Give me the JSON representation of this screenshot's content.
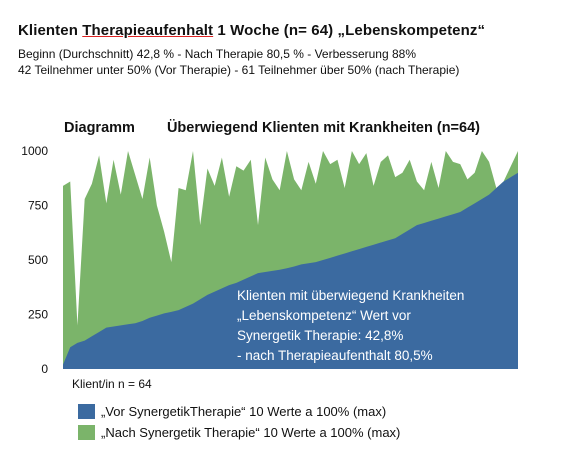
{
  "header": {
    "title_part1": "Klienten ",
    "title_part2": "Therapieaufenhalt",
    "title_part3": " 1 Woche (n= 64) „Lebenskompetenz“",
    "line1": "Beginn (Durchschnitt) 42,8 % - Nach Therapie 80,5 % - Verbesserung 88%",
    "line2": "42 Teilnehmer unter 50% (Vor Therapie) - 61 Teilnehmer über 50% (nach Therapie)"
  },
  "chart_headline": {
    "left": "Diagramm",
    "right": "Überwiegend Klienten mit Krankheiten (n=64)"
  },
  "annotation": {
    "line1": "Klienten mit überwiegend Krankheiten",
    "line2": "„Lebenskompetenz“  Wert vor",
    "line3": "Synergetik Therapie: 42,8%",
    "line4": "- nach Therapieaufenthalt 80,5%"
  },
  "colors": {
    "before": "#3b6aa0",
    "after": "#7bb46a"
  },
  "chart_data": {
    "type": "area",
    "title": "Überwiegend Klienten mit Krankheiten (n=64)",
    "xlabel": "Klient/in n = 64",
    "ylabel": "",
    "ylim": [
      0,
      1000
    ],
    "yticks": [
      0,
      250,
      500,
      750,
      1000
    ],
    "grid": false,
    "legend_position": "bottom",
    "x": [
      1,
      2,
      3,
      4,
      5,
      6,
      7,
      8,
      9,
      10,
      11,
      12,
      13,
      14,
      15,
      16,
      17,
      18,
      19,
      20,
      21,
      22,
      23,
      24,
      25,
      26,
      27,
      28,
      29,
      30,
      31,
      32,
      33,
      34,
      35,
      36,
      37,
      38,
      39,
      40,
      41,
      42,
      43,
      44,
      45,
      46,
      47,
      48,
      49,
      50,
      51,
      52,
      53,
      54,
      55,
      56,
      57,
      58,
      59,
      60,
      61,
      62,
      63,
      64
    ],
    "series": [
      {
        "name": "„Vor SynergetikTherapie“ 10 Werte a 100% (max)",
        "values": [
          20,
          100,
          120,
          130,
          150,
          170,
          190,
          195,
          200,
          205,
          210,
          220,
          235,
          245,
          255,
          262,
          270,
          285,
          300,
          320,
          340,
          355,
          370,
          385,
          395,
          410,
          425,
          440,
          445,
          450,
          455,
          462,
          470,
          480,
          485,
          490,
          500,
          510,
          520,
          530,
          540,
          550,
          560,
          570,
          580,
          590,
          600,
          620,
          640,
          660,
          670,
          680,
          690,
          700,
          710,
          720,
          740,
          760,
          780,
          800,
          830,
          860,
          880,
          900
        ]
      },
      {
        "name": "„Nach Synergetik Therapie“  10 Werte a 100% (max)",
        "values": [
          840,
          860,
          200,
          780,
          850,
          980,
          760,
          960,
          800,
          1000,
          890,
          780,
          970,
          750,
          630,
          490,
          830,
          820,
          1000,
          660,
          920,
          840,
          970,
          790,
          930,
          910,
          960,
          660,
          970,
          870,
          820,
          1000,
          870,
          820,
          950,
          850,
          1000,
          940,
          960,
          830,
          1000,
          940,
          990,
          840,
          950,
          980,
          880,
          900,
          960,
          860,
          820,
          950,
          830,
          1000,
          950,
          940,
          870,
          900,
          1000,
          950,
          830,
          860,
          930,
          1000
        ]
      }
    ],
    "x_axis_note": "Klient/in n = 64"
  }
}
